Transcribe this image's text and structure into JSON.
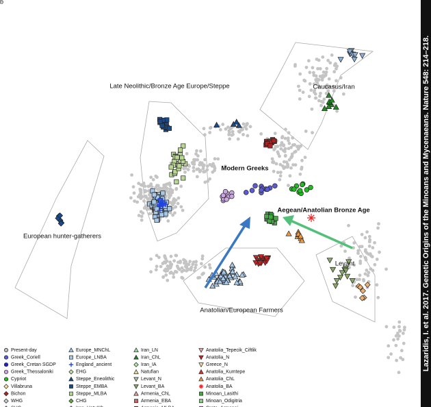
{
  "figure": {
    "panel": "b",
    "labels": [
      "Late Neolithic/Bronze Age Europe/Steppe",
      "Caucasus/Iran",
      "Modern Greeks",
      "Aegean/Anatolian Bronze Age",
      "European hunter-gatherers",
      "Levant",
      "Anatolian/European Farmers"
    ],
    "legend": [
      [
        {
          "label": "Present-day",
          "marker": "circle",
          "color": "#bbbbbb"
        },
        {
          "label": "Greek_Coriell",
          "marker": "circle",
          "color": "#5b5bd6"
        },
        {
          "label": "Greek_Cretan SGDP",
          "marker": "circle",
          "color": "#2222cc"
        },
        {
          "label": "Greek_Thessaloniki",
          "marker": "circle",
          "color": "#c9a6e0"
        },
        {
          "label": "Cypriot",
          "marker": "circle",
          "color": "#22bb22"
        },
        {
          "label": "Villabruna",
          "marker": "diamond",
          "color": "#f0e6a0"
        },
        {
          "label": "Bichon",
          "marker": "diamond",
          "color": "#b22222"
        },
        {
          "label": "WHG",
          "marker": "diamond",
          "color": "#cccccc"
        },
        {
          "label": "SHG",
          "marker": "diamond",
          "color": "#d8a0c0"
        }
      ],
      [
        {
          "label": "Europe_MNChL",
          "marker": "triangle",
          "color": "#a8c8e8"
        },
        {
          "label": "Europe_LNBA",
          "marker": "square",
          "color": "#a8c8e8"
        },
        {
          "label": "England_ancient",
          "marker": "plus",
          "color": "#2244dd"
        },
        {
          "label": "EHG",
          "marker": "diamond",
          "color": "#c8e0a8"
        },
        {
          "label": "Steppe_Eneolithic",
          "marker": "triangle",
          "color": "#1a4a8a"
        },
        {
          "label": "Steppe_EMBA",
          "marker": "square",
          "color": "#1a4a8a"
        },
        {
          "label": "Steppe_MLBA",
          "marker": "square",
          "color": "#b8d890"
        },
        {
          "label": "CHG",
          "marker": "diamond",
          "color": "#66aa44"
        },
        {
          "label": "Iran_HotuIIIb",
          "marker": "diamond",
          "color": "#d8c8e8"
        }
      ],
      [
        {
          "label": "Iran_LN",
          "marker": "triangle",
          "color": "#a8d8a8"
        },
        {
          "label": "Iran_ChL",
          "marker": "triangle",
          "color": "#228822"
        },
        {
          "label": "Iran_IA",
          "marker": "diamond",
          "color": "#aaeeaa"
        },
        {
          "label": "Natufian",
          "marker": "triangle",
          "color": "#e8e0a0"
        },
        {
          "label": "Levant_N",
          "marker": "tridown",
          "color": "#a8c8a8"
        },
        {
          "label": "Levant_BA",
          "marker": "tridown",
          "color": "#88aa66"
        },
        {
          "label": "Armenia_ChL",
          "marker": "triangle",
          "color": "#e8a0a0"
        },
        {
          "label": "Armenia_EBA",
          "marker": "square",
          "color": "#cc6666"
        },
        {
          "label": "Armenia_MLBA",
          "marker": "square",
          "color": "#aa2222"
        }
      ],
      [
        {
          "label": "Anatolia_Tepecik_Ciftlik",
          "marker": "tridown",
          "color": "#e8a8a8"
        },
        {
          "label": "Anatolia_N",
          "marker": "tridown",
          "color": "#cc2222"
        },
        {
          "label": "Greece_N",
          "marker": "tridown",
          "color": "#eeddaa"
        },
        {
          "label": "Anatolia_Kumtepe",
          "marker": "triangle",
          "color": "#cc3333"
        },
        {
          "label": "Anatolia_ChL",
          "marker": "triangle",
          "color": "#ee9944"
        },
        {
          "label": "Anatolia_BA",
          "marker": "star",
          "color": "#ee2222"
        },
        {
          "label": "Minoan_Lasithi",
          "marker": "square",
          "color": "#44aa44"
        },
        {
          "label": "Minoan_Odigitria",
          "marker": "square",
          "color": "#88cc88"
        },
        {
          "label": "Crete_Armenoi",
          "marker": "square",
          "color": "#cc77dd"
        }
      ]
    ],
    "citation": "Lazaridis, I. et al. 2017. Genetic Origins of the Minoans and Mycenaeans. Nature 548: 214–218."
  }
}
